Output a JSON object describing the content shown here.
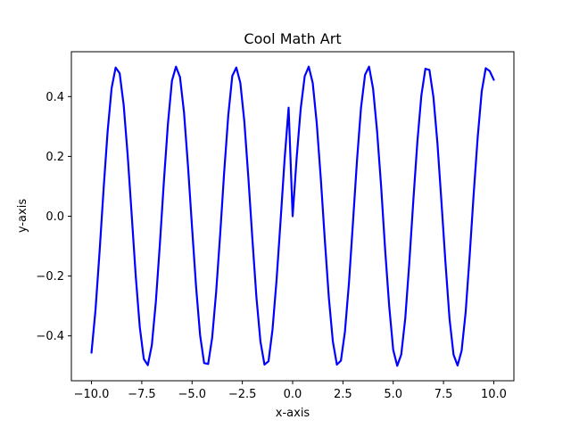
{
  "chart_data": {
    "type": "line",
    "title": "Cool Math Art",
    "xlabel": "x-axis",
    "ylabel": "y-axis",
    "xlim": [
      -11.0,
      11.0
    ],
    "ylim": [
      -0.55,
      0.55
    ],
    "grid": false,
    "x_ticks": [
      -10.0,
      -7.5,
      -5.0,
      -2.5,
      0.0,
      2.5,
      5.0,
      7.5,
      10.0
    ],
    "x_tick_labels": [
      "−10.0",
      "−7.5",
      "−5.0",
      "−2.5",
      "0.0",
      "2.5",
      "5.0",
      "7.5",
      "10.0"
    ],
    "y_ticks": [
      -0.4,
      -0.2,
      0.0,
      0.2,
      0.4
    ],
    "y_tick_labels": [
      "−0.4",
      "−0.2",
      "0.0",
      "0.2",
      "0.4"
    ],
    "series": [
      {
        "color": "#0000ff",
        "x": [
          -10.0,
          -9.8,
          -9.6,
          -9.4,
          -9.2,
          -9.0,
          -8.8,
          -8.6,
          -8.4,
          -8.2,
          -8.0,
          -7.8,
          -7.6,
          -7.4,
          -7.2,
          -7.0,
          -6.8,
          -6.6,
          -6.4,
          -6.2,
          -6.0,
          -5.8,
          -5.6,
          -5.4,
          -5.2,
          -5.0,
          -4.8,
          -4.6,
          -4.4,
          -4.2,
          -4.0,
          -3.8,
          -3.6,
          -3.4,
          -3.2,
          -3.0,
          -2.8,
          -2.6,
          -2.4,
          -2.2,
          -2.0,
          -1.8,
          -1.6,
          -1.4,
          -1.2,
          -1.0,
          -0.8,
          -0.6,
          -0.4,
          -0.2,
          0.0,
          0.2,
          0.4,
          0.6,
          0.8,
          1.0,
          1.2,
          1.4,
          1.6,
          1.8,
          2.0,
          2.2,
          2.4,
          2.6,
          2.8,
          3.0,
          3.2,
          3.4,
          3.6,
          3.8,
          4.0,
          4.2,
          4.4,
          4.6,
          4.8,
          5.0,
          5.2,
          5.4,
          5.6,
          5.8,
          6.0,
          6.2,
          6.4,
          6.6,
          6.8,
          7.0,
          7.2,
          7.4,
          7.6,
          7.8,
          8.0,
          8.2,
          8.4,
          8.6,
          8.8,
          9.0,
          9.2,
          9.4,
          9.6,
          9.8,
          10.0
        ],
        "y": [
          -0.456,
          -0.313,
          -0.121,
          0.089,
          0.282,
          0.428,
          0.497,
          0.478,
          0.372,
          0.203,
          0.003,
          -0.2,
          -0.37,
          -0.477,
          -0.498,
          -0.431,
          -0.286,
          -0.093,
          0.117,
          0.309,
          0.453,
          0.5,
          0.465,
          0.347,
          0.166,
          -0.038,
          -0.236,
          -0.398,
          -0.491,
          -0.494,
          -0.406,
          -0.251,
          -0.058,
          0.151,
          0.337,
          0.469,
          0.497,
          0.446,
          0.316,
          0.128,
          -0.077,
          -0.271,
          -0.419,
          -0.496,
          -0.485,
          -0.379,
          -0.214,
          -0.016,
          0.19,
          0.363,
          0.0,
          0.195,
          0.359,
          0.468,
          0.5,
          0.445,
          0.31,
          0.126,
          -0.079,
          -0.272,
          -0.419,
          -0.496,
          -0.483,
          -0.386,
          -0.223,
          -0.02,
          0.187,
          0.363,
          0.473,
          0.5,
          0.426,
          0.283,
          0.099,
          -0.113,
          -0.3,
          -0.447,
          -0.5,
          -0.462,
          -0.341,
          -0.156,
          0.052,
          0.248,
          0.404,
          0.493,
          0.489,
          0.398,
          0.243,
          0.046,
          -0.157,
          -0.343,
          -0.463,
          -0.499,
          -0.45,
          -0.322,
          -0.133,
          0.074,
          0.264,
          0.417,
          0.495,
          0.485,
          0.456
        ]
      }
    ]
  }
}
